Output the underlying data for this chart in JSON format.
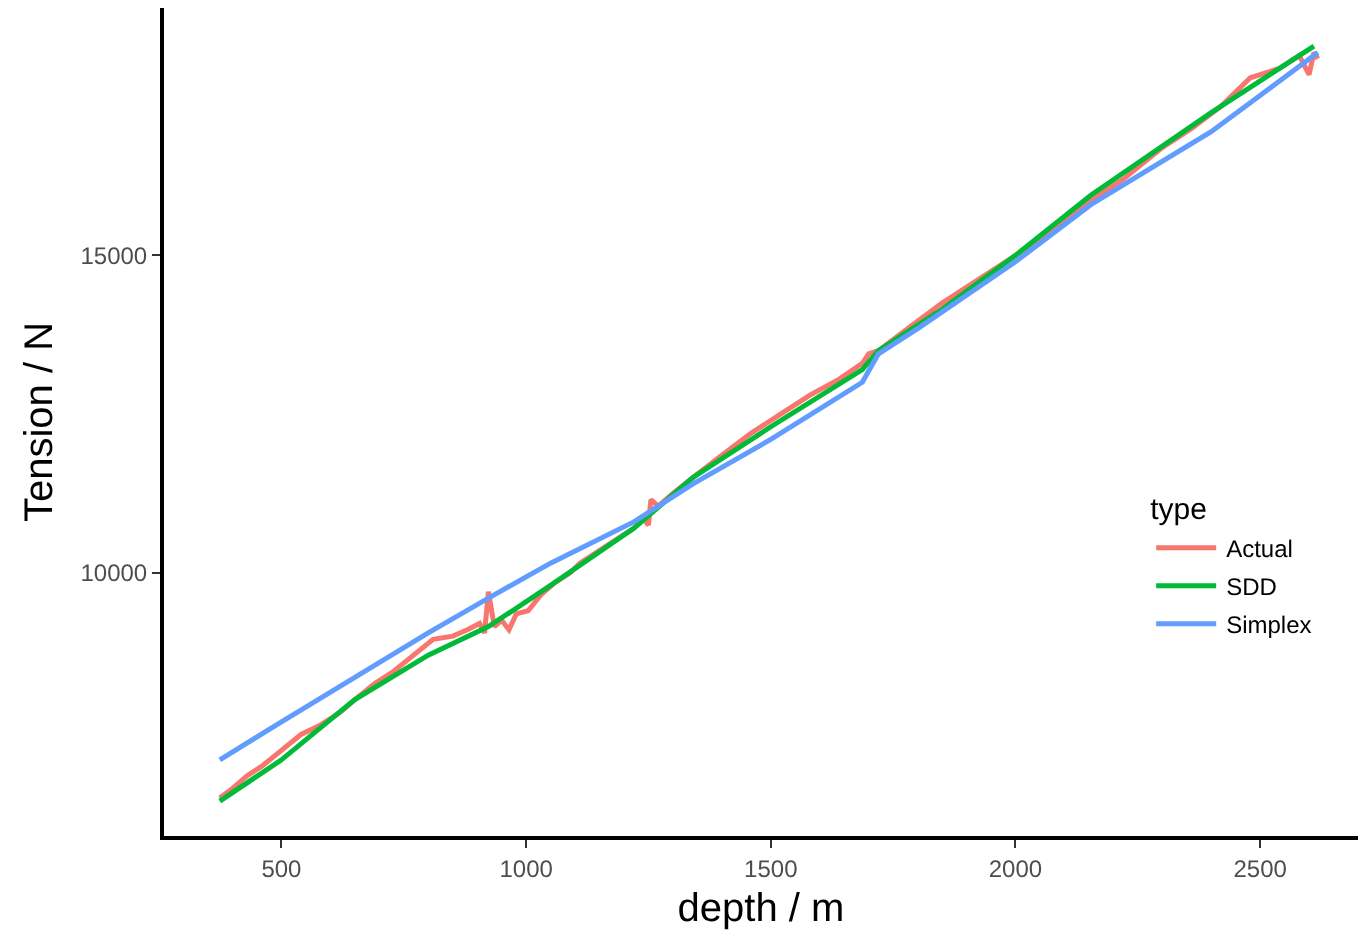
{
  "chart_data": {
    "type": "line",
    "xlabel": "depth / m",
    "ylabel": "Tension / N",
    "legend_title": "type",
    "legend": "bottom right",
    "grid": false,
    "marker": "none",
    "line_style": "solid",
    "xlim": [
      260,
      2700
    ],
    "ylim": [
      5850,
      18900
    ],
    "xticks": [
      500,
      1000,
      1500,
      2000,
      2500
    ],
    "yticks": [
      10000,
      15000
    ],
    "series": [
      {
        "name": "Actual",
        "color": "#f8766d",
        "x": [
          374,
          400,
          430,
          460,
          500,
          540,
          580,
          620,
          650,
          690,
          730,
          770,
          810,
          850,
          880,
          905,
          915,
          923,
          935,
          950,
          965,
          980,
          1004,
          1030,
          1060,
          1090,
          1110,
          1140,
          1170,
          1200,
          1220,
          1240,
          1250,
          1255,
          1270,
          1300,
          1341,
          1400,
          1460,
          1520,
          1580,
          1640,
          1687,
          1700,
          1720,
          1780,
          1850,
          1920,
          2000,
          2080,
          2150,
          2220,
          2300,
          2360,
          2420,
          2480,
          2540,
          2580,
          2600,
          2610,
          2618
        ],
        "values": [
          6450,
          6600,
          6800,
          6950,
          7200,
          7450,
          7600,
          7800,
          8000,
          8250,
          8450,
          8700,
          8950,
          9000,
          9100,
          9200,
          9050,
          9700,
          9150,
          9250,
          9100,
          9350,
          9400,
          9650,
          9850,
          10000,
          10150,
          10300,
          10450,
          10600,
          10700,
          10850,
          10750,
          11150,
          11050,
          11250,
          11500,
          11850,
          12200,
          12500,
          12800,
          13050,
          13300,
          13450,
          13500,
          13850,
          14250,
          14600,
          15000,
          15400,
          15850,
          16200,
          16700,
          17000,
          17350,
          17800,
          17950,
          18150,
          17850,
          18200,
          18100
        ]
      },
      {
        "name": "SDD",
        "color": "#00ba38",
        "x": [
          374,
          500,
          650,
          800,
          923,
          1050,
          1220,
          1341,
          1500,
          1687,
          1720,
          1850,
          2000,
          2154,
          2400,
          2610
        ],
        "values": [
          6400,
          7050,
          8000,
          8700,
          9150,
          9800,
          10700,
          11500,
          12300,
          13200,
          13500,
          14150,
          15000,
          15950,
          17250,
          18300
        ]
      },
      {
        "name": "Simplex",
        "color": "#619cff",
        "x": [
          374,
          500,
          650,
          800,
          923,
          1050,
          1220,
          1341,
          1500,
          1687,
          1720,
          1801,
          2000,
          2154,
          2400,
          2618
        ],
        "values": [
          7050,
          7650,
          8350,
          9050,
          9600,
          10150,
          10800,
          11400,
          12100,
          13000,
          13450,
          13850,
          14900,
          15800,
          16950,
          18200
        ]
      }
    ]
  }
}
